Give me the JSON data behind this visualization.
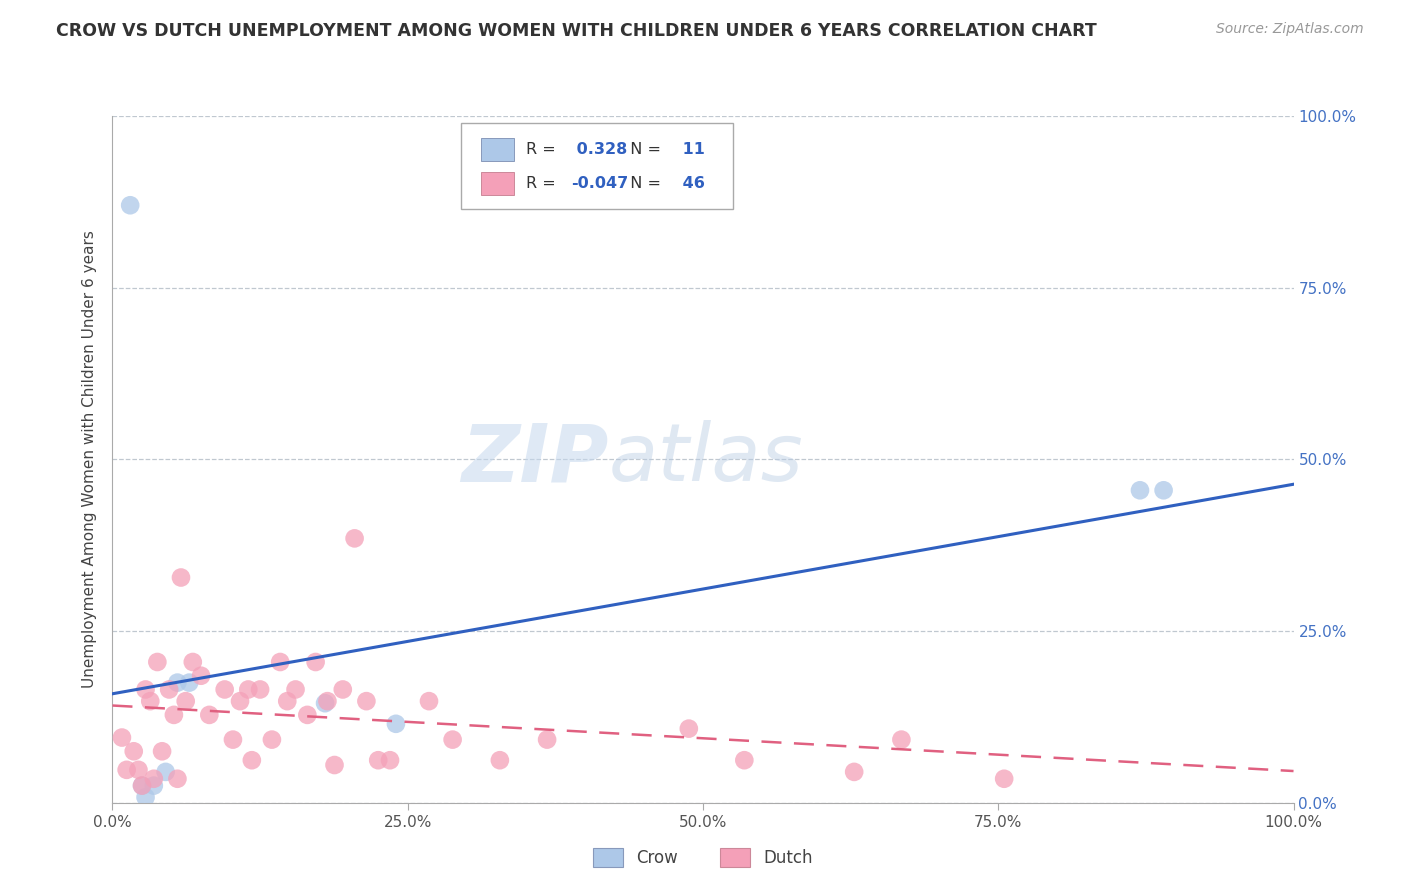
{
  "title": "CROW VS DUTCH UNEMPLOYMENT AMONG WOMEN WITH CHILDREN UNDER 6 YEARS CORRELATION CHART",
  "source": "Source: ZipAtlas.com",
  "ylabel": "Unemployment Among Women with Children Under 6 years",
  "crow_R": 0.328,
  "crow_N": 11,
  "dutch_R": -0.047,
  "dutch_N": 46,
  "xlim": [
    0.0,
    1.0
  ],
  "ylim": [
    0.0,
    1.0
  ],
  "xticks": [
    0.0,
    0.25,
    0.5,
    0.75,
    1.0
  ],
  "yticks": [
    0.0,
    0.25,
    0.5,
    0.75,
    1.0
  ],
  "xticklabels": [
    "0.0%",
    "25.0%",
    "50.0%",
    "75.0%",
    "100.0%"
  ],
  "right_yticklabels": [
    "0.0%",
    "25.0%",
    "50.0%",
    "75.0%",
    "100.0%"
  ],
  "crow_color": "#adc8e8",
  "dutch_color": "#f4a0b8",
  "crow_line_color": "#3060c0",
  "dutch_line_color": "#e06080",
  "background_color": "#ffffff",
  "grid_color": "#c0c8d0",
  "watermark_zip": "ZIP",
  "watermark_atlas": "atlas",
  "crow_points_x": [
    0.015,
    0.87,
    0.89,
    0.055,
    0.065,
    0.045,
    0.035,
    0.025,
    0.028,
    0.24,
    0.18
  ],
  "crow_points_y": [
    0.87,
    0.455,
    0.455,
    0.175,
    0.175,
    0.045,
    0.025,
    0.025,
    0.008,
    0.115,
    0.145
  ],
  "dutch_points_x": [
    0.008,
    0.012,
    0.018,
    0.022,
    0.025,
    0.028,
    0.032,
    0.035,
    0.038,
    0.042,
    0.048,
    0.052,
    0.055,
    0.058,
    0.062,
    0.068,
    0.075,
    0.082,
    0.095,
    0.102,
    0.108,
    0.115,
    0.118,
    0.125,
    0.135,
    0.142,
    0.148,
    0.155,
    0.165,
    0.172,
    0.182,
    0.188,
    0.195,
    0.205,
    0.215,
    0.225,
    0.235,
    0.268,
    0.288,
    0.328,
    0.368,
    0.488,
    0.535,
    0.628,
    0.668,
    0.755
  ],
  "dutch_points_y": [
    0.095,
    0.048,
    0.075,
    0.048,
    0.025,
    0.165,
    0.148,
    0.035,
    0.205,
    0.075,
    0.165,
    0.128,
    0.035,
    0.328,
    0.148,
    0.205,
    0.185,
    0.128,
    0.165,
    0.092,
    0.148,
    0.165,
    0.062,
    0.165,
    0.092,
    0.205,
    0.148,
    0.165,
    0.128,
    0.205,
    0.148,
    0.055,
    0.165,
    0.385,
    0.148,
    0.062,
    0.062,
    0.148,
    0.092,
    0.062,
    0.092,
    0.108,
    0.062,
    0.045,
    0.092,
    0.035
  ]
}
